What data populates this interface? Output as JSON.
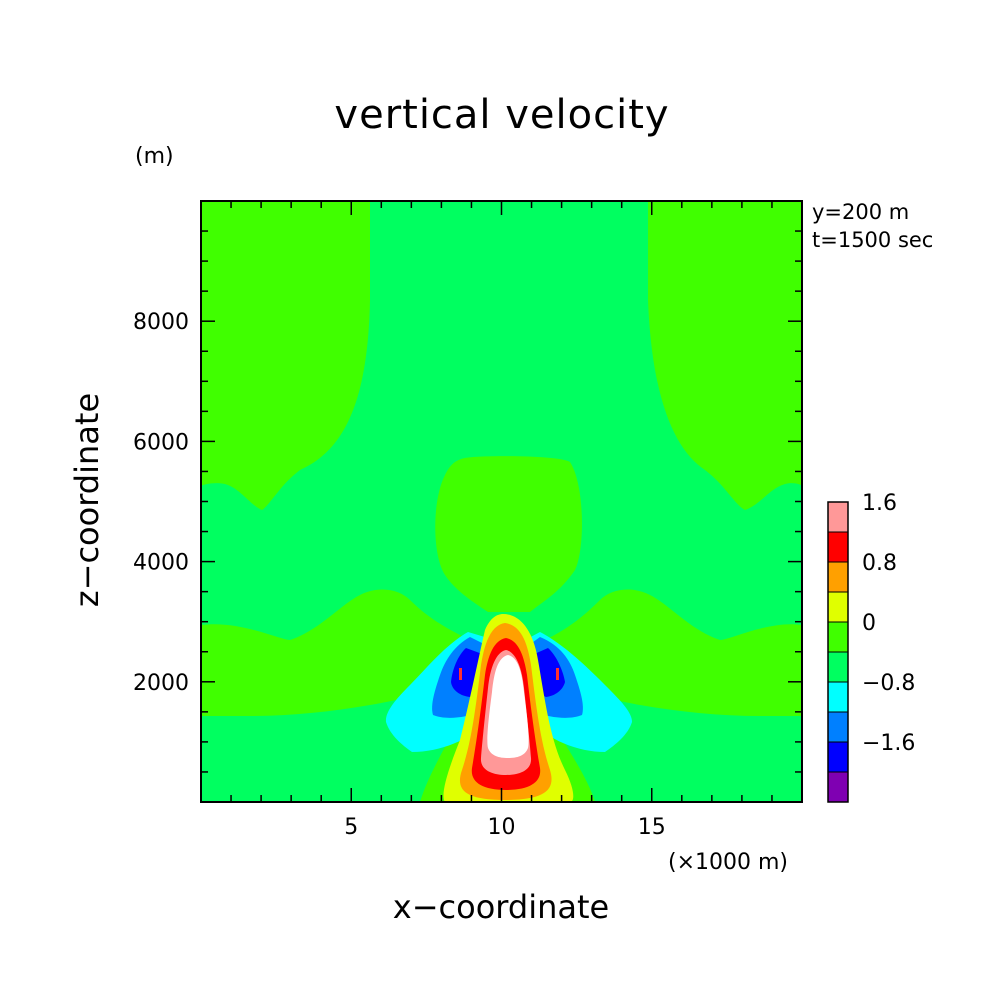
{
  "chart_data": {
    "type": "contour",
    "title": "vertical velocity",
    "xlabel": "x−coordinate",
    "ylabel": "z−coordinate",
    "x_unit": "(×1000 m)",
    "y_unit": "(m)",
    "annotations": [
      "y=200 m",
      "t=1500 sec"
    ],
    "xlim": [
      0,
      20
    ],
    "ylim": [
      0,
      10000
    ],
    "x_ticks": [
      {
        "value": 5,
        "label": "5"
      },
      {
        "value": 10,
        "label": "10"
      },
      {
        "value": 15,
        "label": "15"
      }
    ],
    "y_ticks": [
      {
        "value": 2000,
        "label": "2000"
      },
      {
        "value": 4000,
        "label": "4000"
      },
      {
        "value": 6000,
        "label": "6000"
      },
      {
        "value": 8000,
        "label": "8000"
      }
    ],
    "colorbar": {
      "levels": [
        {
          "color": "#7f00b2",
          "label": ""
        },
        {
          "color": "#0000ff",
          "label": "−1.6"
        },
        {
          "color": "#0080ff",
          "label": ""
        },
        {
          "color": "#00ffff",
          "label": "−0.8"
        },
        {
          "color": "#00ff60",
          "label": ""
        },
        {
          "color": "#40ff00",
          "label": "0"
        },
        {
          "color": "#e0ff00",
          "label": ""
        },
        {
          "color": "#ffa000",
          "label": "0.8"
        },
        {
          "color": "#ff0000",
          "label": ""
        },
        {
          "color": "#ff9898",
          "label": "1.6"
        }
      ]
    },
    "field_features": [
      {
        "name": "updraft core",
        "x": 10.2,
        "z": 1600,
        "value": 2.0
      },
      {
        "name": "left downdraft",
        "x": 8.8,
        "z": 2100,
        "value": -1.6
      },
      {
        "name": "right downdraft",
        "x": 11.8,
        "z": 2100,
        "value": -1.6
      }
    ]
  }
}
